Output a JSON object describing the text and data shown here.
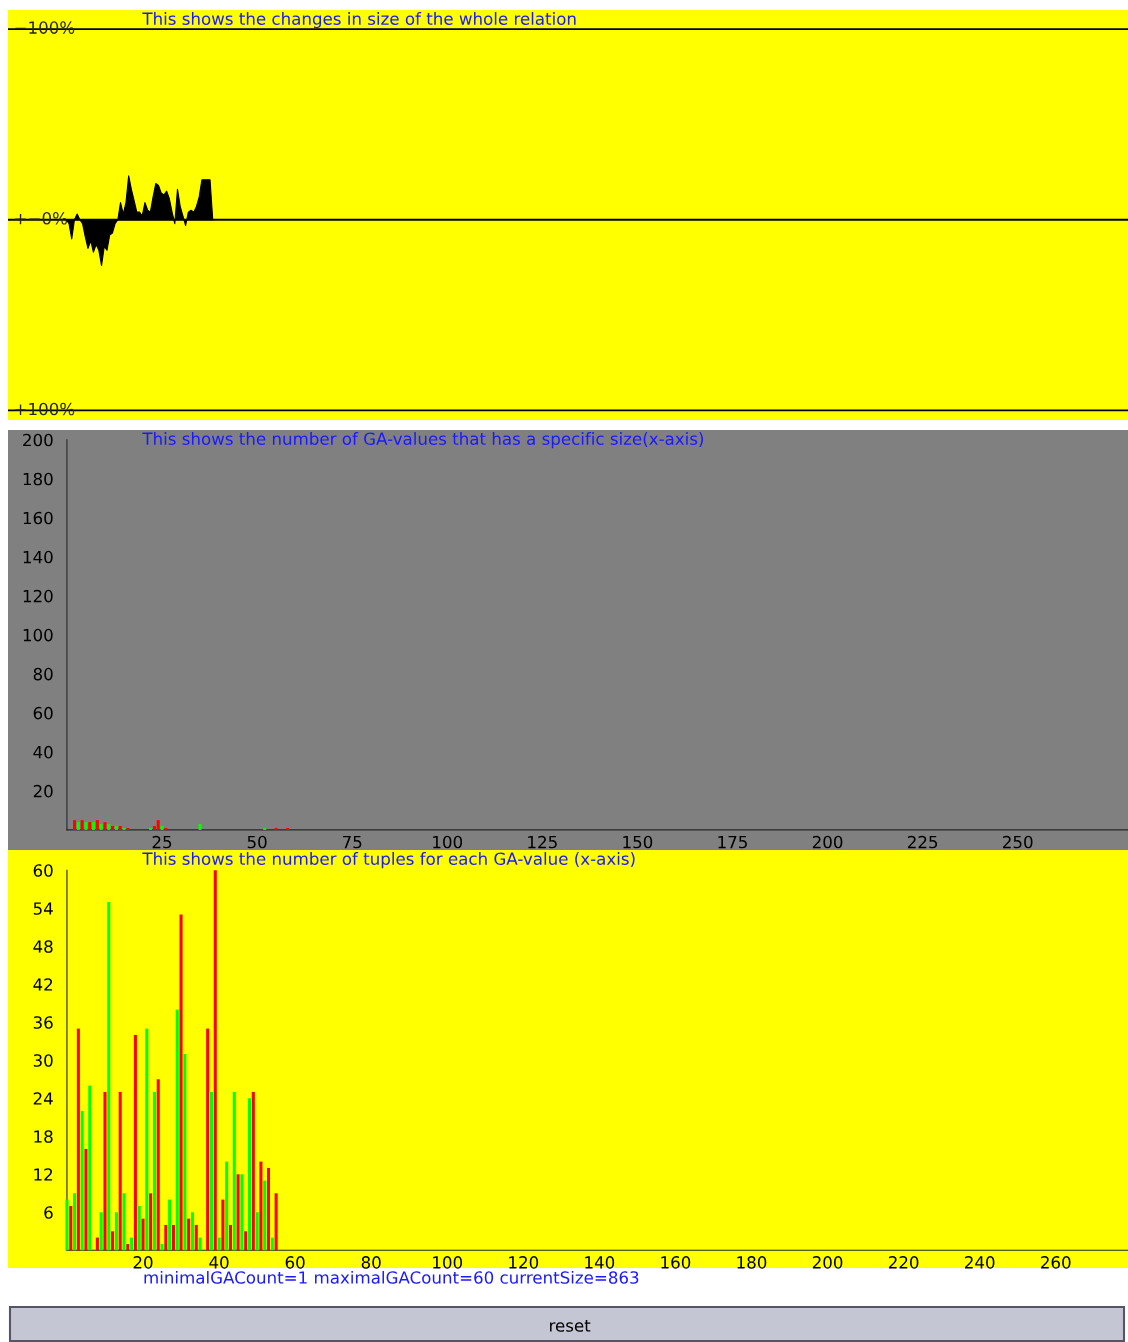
{
  "chart_data": [
    {
      "type": "area",
      "title": "This shows the changes in size of the whole relation",
      "tick_labels": "y",
      "grid": "y",
      "categories": [
        null,
        null,
        null,
        null,
        null,
        null,
        null,
        null,
        null,
        null,
        null,
        null,
        null,
        null,
        null,
        null,
        null,
        null,
        null,
        null,
        null,
        null,
        null,
        null,
        null,
        null,
        null,
        null,
        null,
        null,
        null,
        null,
        null,
        null,
        null,
        null,
        null,
        null,
        null,
        null,
        null,
        null,
        null,
        null,
        null,
        null,
        null,
        null,
        null,
        null,
        null,
        null,
        null,
        null,
        null,
        null,
        null,
        null,
        null,
        null,
        null,
        null,
        null,
        null,
        null,
        null,
        null,
        null,
        null,
        null,
        null,
        null,
        null,
        null,
        null,
        null,
        null,
        null,
        null,
        null,
        null,
        null,
        null,
        null,
        null,
        null,
        null,
        null,
        null,
        null,
        null,
        null,
        null,
        null,
        null,
        null,
        null,
        null,
        null,
        null,
        null,
        null,
        null,
        null,
        null,
        null,
        null,
        null,
        null,
        null,
        null,
        null,
        null,
        null,
        null,
        null,
        null,
        null,
        null,
        null,
        null,
        null,
        null,
        null,
        null,
        null,
        null,
        null,
        null,
        null,
        null,
        null,
        null,
        null,
        null,
        null,
        null,
        null,
        null,
        null,
        null,
        null,
        null,
        null,
        null,
        null,
        null,
        null,
        null,
        null,
        null,
        null,
        null,
        null,
        null,
        null,
        null,
        null,
        null,
        null,
        null,
        null,
        null,
        null,
        null,
        null,
        null,
        null,
        null,
        null,
        null,
        null,
        null,
        null,
        null,
        null,
        null,
        null,
        null,
        null,
        null,
        null,
        null,
        null,
        null,
        null,
        null,
        null,
        null,
        null,
        null,
        null,
        null,
        null,
        null,
        null,
        null,
        null,
        null,
        null,
        null,
        null,
        null,
        null,
        null,
        null,
        null,
        null,
        null,
        null,
        null,
        null,
        null,
        null,
        null,
        null,
        null,
        null,
        null,
        null,
        null,
        null,
        null,
        null,
        null,
        null,
        null,
        null,
        null,
        null,
        null,
        null,
        null,
        null,
        null,
        null,
        null,
        null,
        null,
        null,
        null,
        null,
        null,
        null,
        null,
        null,
        null,
        null,
        null,
        null,
        null,
        null,
        null,
        null,
        null,
        null,
        null,
        null,
        null,
        null,
        null,
        null,
        null,
        null,
        null,
        null,
        null,
        null,
        null,
        null,
        null,
        null,
        null,
        null,
        null,
        null,
        null,
        null,
        null,
        null,
        null,
        null,
        null,
        null,
        null,
        null,
        null,
        null,
        null,
        null,
        null,
        null,
        null,
        null,
        null,
        null,
        null,
        null,
        null,
        null,
        null,
        null,
        null,
        null,
        null,
        null,
        null,
        null,
        null,
        null,
        null,
        null,
        null,
        null,
        null,
        null,
        null,
        null,
        null,
        null,
        null,
        null,
        null,
        null,
        null,
        null,
        null,
        null,
        null,
        null,
        null,
        null,
        null,
        null,
        null,
        null,
        null,
        null,
        null,
        null,
        null,
        null,
        null,
        null,
        null,
        null,
        null,
        null,
        null,
        null,
        null,
        null,
        null,
        null,
        null,
        null,
        null,
        null,
        null,
        null,
        null,
        null,
        null,
        null,
        null,
        null,
        null,
        null,
        null,
        null,
        null,
        null,
        null,
        null,
        null,
        null,
        null,
        null,
        null,
        null,
        null,
        null,
        null,
        null,
        null,
        null,
        null,
        null,
        null,
        null,
        null,
        null,
        null,
        null,
        null,
        null,
        null,
        null,
        null,
        null,
        null,
        null,
        null,
        null,
        null,
        null,
        null,
        null,
        null,
        null,
        null,
        null,
        null
      ],
      "ylim": [
        105,
        -110
      ],
      "yticks": [
        {
          "value": -100,
          "label": "−100%"
        },
        {
          "value": 0,
          "label": "+−0%"
        },
        {
          "value": 100,
          "label": "+100%"
        }
      ],
      "series": [
        {
          "color": "#000000",
          "values": [
            null,
            null,
            null,
            null,
            null,
            null,
            null,
            null,
            null,
            null,
            null,
            null,
            null,
            null,
            null,
            null,
            null,
            null,
            null,
            null,
            null,
            0,
            2,
            10,
            0,
            -3,
            0,
            2,
            9,
            15,
            11,
            17,
            13,
            16,
            24,
            14,
            16,
            8,
            7,
            2,
            0,
            -9,
            -3,
            -9,
            -23,
            -16,
            -10,
            -4,
            -4,
            -2,
            -9,
            -5,
            -4,
            -12,
            -19,
            -18,
            -14,
            -13,
            -15,
            -11,
            -4,
            2,
            -16,
            -7,
            -2,
            3,
            -4,
            -5,
            -4,
            -7,
            -12,
            -21,
            -21,
            -21,
            -21,
            0,
            null,
            null,
            null,
            null,
            null,
            null,
            null,
            null,
            null,
            null,
            null,
            null,
            null,
            null,
            null,
            null,
            null,
            null,
            null,
            null,
            null,
            null,
            null,
            null,
            null,
            null,
            null,
            null,
            null,
            null,
            null,
            null,
            null,
            null,
            null,
            null,
            null,
            null,
            null,
            null,
            null,
            null,
            null,
            null,
            null,
            null,
            null,
            null,
            null,
            null,
            null,
            null,
            null,
            null,
            null,
            null,
            null,
            null,
            null,
            null,
            null,
            null,
            null,
            null,
            null,
            null,
            null,
            null,
            null,
            null,
            null,
            null,
            null,
            null,
            null,
            null,
            null,
            null,
            null,
            null,
            null,
            null,
            null,
            null,
            null,
            null,
            null,
            null,
            null,
            null,
            null,
            null,
            null,
            null,
            null,
            null,
            null,
            null,
            null,
            null,
            null,
            null,
            null,
            null,
            null,
            null,
            null,
            null,
            null,
            null,
            null,
            null,
            null,
            null,
            null,
            null,
            null,
            null,
            null,
            null,
            null,
            null,
            null,
            null,
            null,
            null,
            null,
            null,
            null,
            null,
            null,
            null,
            null,
            null,
            null,
            null,
            null,
            null,
            null,
            null,
            null,
            null,
            null,
            null,
            null,
            null,
            null,
            null,
            null,
            null,
            null,
            null,
            null,
            null,
            null,
            null,
            null,
            null,
            null,
            null,
            null,
            null,
            null,
            null,
            null,
            null,
            null,
            null,
            null,
            null,
            null,
            null,
            null,
            null,
            null,
            null,
            null,
            null,
            null,
            null,
            null,
            null,
            null,
            null,
            null,
            null,
            null,
            null,
            null,
            null,
            null,
            null,
            null,
            null,
            null,
            null,
            null,
            null,
            null,
            null,
            null,
            null,
            null,
            null,
            null,
            null,
            null,
            null,
            null,
            null,
            null,
            null,
            null,
            null,
            null,
            null,
            null,
            null,
            null,
            null,
            null,
            null,
            null,
            null,
            null,
            null,
            null,
            null,
            null,
            null,
            null,
            null,
            null,
            null,
            null,
            null,
            null,
            null,
            null,
            null,
            null,
            null,
            null,
            null,
            null,
            null,
            null,
            null,
            null,
            null,
            null,
            null,
            null,
            null,
            null,
            null,
            null,
            null,
            null,
            null,
            null,
            null,
            null,
            null,
            null,
            null,
            null,
            null,
            null,
            null,
            null,
            null,
            null,
            null,
            null,
            null,
            null,
            null,
            null,
            null,
            null,
            null,
            null,
            null,
            null,
            null,
            null,
            null,
            null,
            null,
            null,
            null,
            null,
            null,
            null,
            null,
            null,
            null,
            null,
            null,
            null,
            null,
            null,
            null,
            null,
            null,
            null,
            null,
            null,
            null,
            null,
            null,
            null,
            null,
            null,
            null,
            null,
            null,
            null,
            null,
            null,
            null,
            null,
            null,
            null,
            null,
            null,
            null,
            null,
            null,
            null,
            null,
            null,
            null,
            null,
            null,
            null
          ]
        }
      ]
    },
    {
      "type": "bar",
      "title": "This shows the number of GA-values that has a specific size(x-axis)",
      "x": [
        2,
        3,
        4,
        5,
        6,
        7,
        8,
        9,
        10,
        11,
        12,
        13,
        14,
        15,
        16,
        22,
        23,
        24,
        25,
        26,
        35,
        52,
        55,
        58
      ],
      "values": [
        5,
        4,
        5,
        4,
        4,
        4,
        5,
        3,
        4,
        3,
        2,
        2,
        2,
        1,
        1,
        1,
        2,
        5,
        2,
        1,
        3,
        1,
        1,
        1
      ],
      "colors": [
        "#ff0000",
        "#00ff00",
        "#ff0000",
        "#00ff00",
        "#ff0000",
        "#00ff00",
        "#ff0000",
        "#00ff00",
        "#ff0000",
        "#00ff00",
        "#ff0000",
        "#00ff00",
        "#ff0000",
        "#00ff00",
        "#ff0000",
        "#00ff00",
        "#ff0000",
        "#ff0000",
        "#00ff00",
        "#ff0000",
        "#00ff00",
        "#00ff00",
        "#ff0000",
        "#ff0000"
      ],
      "xlim": [
        -15.5,
        279
      ],
      "xticks": [
        25,
        50,
        75,
        100,
        125,
        150,
        175,
        200,
        225,
        250
      ],
      "ylim": [
        -10.3,
        205
      ],
      "yticks": [
        20,
        40,
        60,
        80,
        100,
        120,
        140,
        160,
        180,
        200
      ]
    },
    {
      "type": "bar",
      "title": "This shows the number of tuples for each GA-value (x-axis)",
      "x": [
        0,
        1,
        2,
        3,
        4,
        5,
        6,
        7,
        8,
        9,
        10,
        11,
        12,
        13,
        14,
        15,
        16,
        17,
        18,
        19,
        20,
        21,
        22,
        23,
        24,
        25,
        26,
        27,
        28,
        29,
        30,
        31,
        32,
        33,
        34,
        35,
        36,
        37,
        38,
        39,
        40,
        41,
        42,
        43,
        44,
        45,
        46,
        47,
        48,
        49,
        50,
        51,
        52,
        53,
        54,
        55
      ],
      "values": [
        8,
        7,
        9,
        35,
        22,
        16,
        26,
        null,
        2,
        6,
        25,
        55,
        3,
        6,
        25,
        9,
        1,
        2,
        34,
        7,
        5,
        35,
        9,
        25,
        27,
        1,
        4,
        8,
        4,
        38,
        53,
        31,
        5,
        6,
        4,
        2,
        null,
        35,
        25,
        60,
        2,
        8,
        14,
        4,
        25,
        12,
        12,
        3,
        24,
        25,
        6,
        14,
        11,
        13,
        2,
        9
      ],
      "colors": [
        "#00ff00",
        "#ff0000",
        "#00ff00",
        "#ff0000",
        "#00ff00",
        "#ff0000",
        "#00ff00",
        "#ff0000",
        "#ff0000",
        "#00ff00",
        "#ff0000",
        "#00ff00",
        "#ff0000",
        "#00ff00",
        "#ff0000",
        "#00ff00",
        "#ff0000",
        "#00ff00",
        "#ff0000",
        "#00ff00",
        "#ff0000",
        "#00ff00",
        "#ff0000",
        "#00ff00",
        "#ff0000",
        "#00ff00",
        "#ff0000",
        "#00ff00",
        "#ff0000",
        "#00ff00",
        "#ff0000",
        "#00ff00",
        "#ff0000",
        "#00ff00",
        "#ff0000",
        "#00ff00",
        "#00ff00",
        "#ff0000",
        "#00ff00",
        "#ff0000",
        "#00ff00",
        "#ff0000",
        "#00ff00",
        "#ff0000",
        "#00ff00",
        "#ff0000",
        "#00ff00",
        "#ff0000",
        "#00ff00",
        "#ff0000",
        "#00ff00",
        "#ff0000",
        "#00ff00",
        "#ff0000",
        "#00ff00",
        "#ff0000"
      ],
      "xlim": [
        -15.5,
        279
      ],
      "xticks": [
        20,
        40,
        60,
        80,
        100,
        120,
        140,
        160,
        180,
        200,
        220,
        240,
        260
      ],
      "ylim": [
        -2.8,
        63.2
      ],
      "yticks": [
        6,
        12,
        18,
        24,
        30,
        36,
        42,
        48,
        54,
        60
      ],
      "annotations": [
        "minimalGACount=1 maximalGACount=60 currentSize=863",
        "reset"
      ]
    }
  ]
}
